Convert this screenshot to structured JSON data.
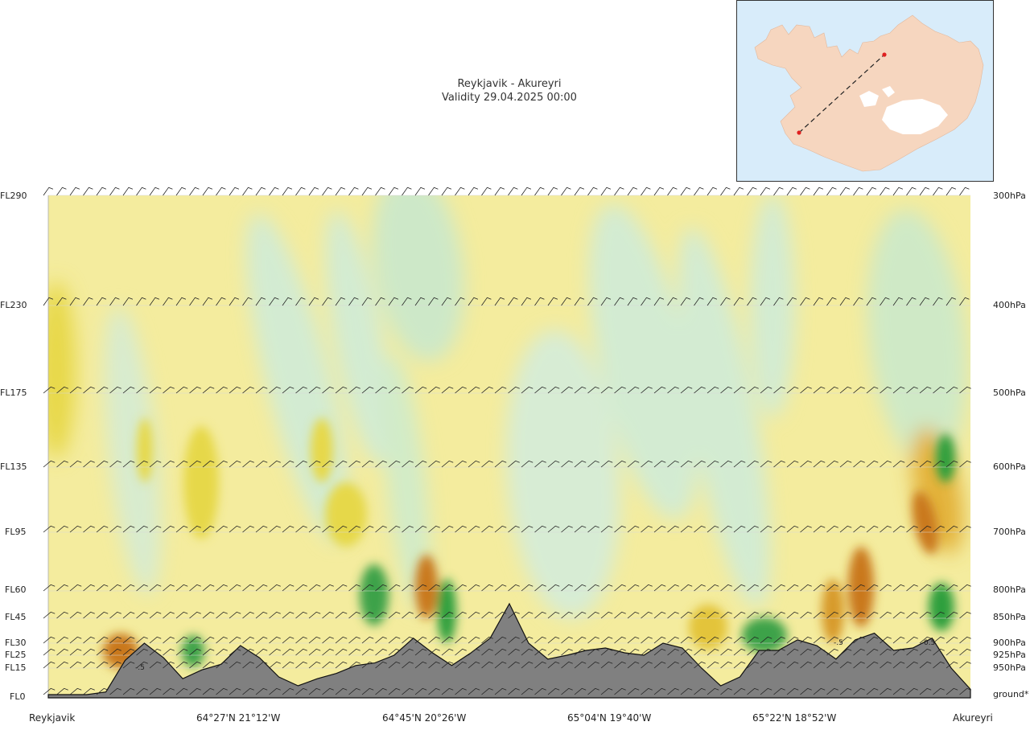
{
  "header": {
    "route": "Reykjavik - Akureyri",
    "validity": "Validity 29.04.2025 00:00"
  },
  "colors": {
    "sky": "#f4ec9e",
    "ground": "#808080",
    "map_sea": "#d8ecfa",
    "map_land": "#f6d6bf",
    "map_glacier": "#ffffff",
    "route_line": "#222222",
    "route_point": "#e02020"
  },
  "chart_data": {
    "type": "vertical-cross-section",
    "title": "Reykjavik - Akureyri",
    "subtitle": "Validity 29.04.2025 00:00",
    "y_left_labels": [
      "FL290",
      "FL230",
      "FL175",
      "FL135",
      "FL95",
      "FL60",
      "FL45",
      "FL30",
      "FL25",
      "FL15",
      "FL0"
    ],
    "y_right_labels": [
      "300hPa",
      "400hPa",
      "500hPa",
      "600hPa",
      "700hPa",
      "800hPa",
      "850hPa",
      "900hPa",
      "925hPa",
      "950hPa",
      "ground*"
    ],
    "levels_ft": [
      29000,
      23000,
      17500,
      13500,
      9500,
      6000,
      4500,
      3000,
      2500,
      1500,
      0
    ],
    "x_labels": [
      "Reykjavik",
      "64°27'N 21°12'W",
      "64°45'N 20°26'W",
      "65°04'N 19°40'W",
      "65°22'N 18°52'W",
      "Akureyri"
    ],
    "x_range": [
      0,
      1
    ],
    "terrain_profile_ft": [
      0,
      0,
      0,
      150,
      2100,
      3000,
      2300,
      900,
      1400,
      1800,
      2900,
      2300,
      1000,
      500,
      900,
      1200,
      1700,
      1900,
      2500,
      3300,
      2600,
      1700,
      2600,
      3300,
      5300,
      3000,
      2200,
      2500,
      2700,
      2800,
      2600,
      2500,
      3000,
      2800,
      1500,
      500,
      1000,
      2700,
      2700,
      3200,
      2900,
      2200,
      3200,
      3600,
      2700,
      2800,
      3300,
      1500,
      300
    ],
    "contour_annotations": [
      "-.5",
      "-.5",
      "0.5"
    ],
    "wind_barb_rows": 11
  },
  "inset_map": {
    "region": "Iceland",
    "route_from": "Reykjavik",
    "route_to": "Akureyri"
  }
}
